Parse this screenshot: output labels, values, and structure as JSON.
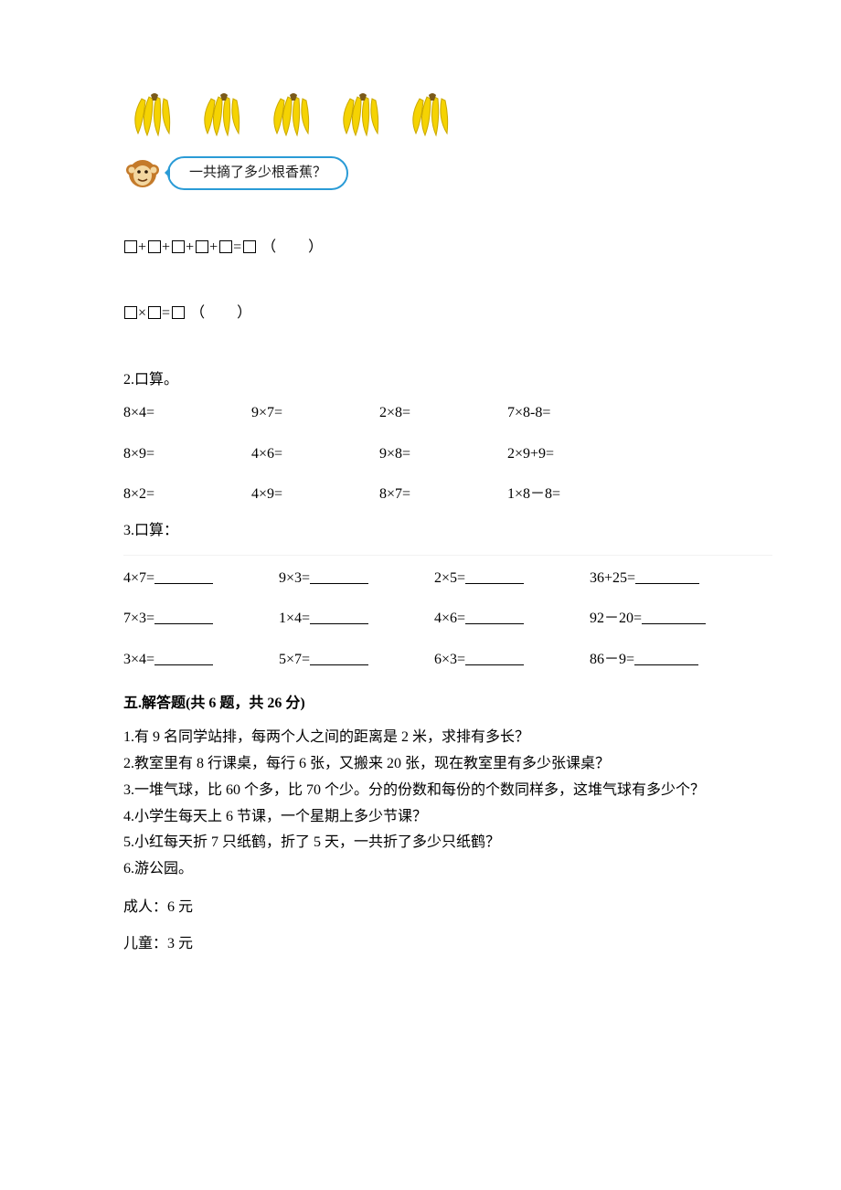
{
  "problem1": {
    "banana_count": 5,
    "speech_text": "一共摘了多少根香蕉？",
    "addition_terms": 5,
    "addition_unit": "（　　）",
    "mult_unit": "（　　）"
  },
  "problem2": {
    "heading": "2.口算。",
    "rows": [
      [
        "8×4=",
        "9×7=",
        "2×8=",
        "7×8-8="
      ],
      [
        "8×9=",
        "4×6=",
        "9×8=",
        "2×9+9="
      ],
      [
        "8×2=",
        "4×9=",
        "8×7=",
        "1×8－8="
      ]
    ]
  },
  "problem3": {
    "heading": "3.口算：",
    "rows": [
      [
        "4×7=",
        "9×3=",
        "2×5=",
        "36+25="
      ],
      [
        "7×3=",
        "1×4=",
        "4×6=",
        " 92－20="
      ],
      [
        "3×4=",
        "5×7=",
        "6×3=",
        "86－9="
      ]
    ]
  },
  "section5": {
    "title": "五.解答题(共 6 题，共 26 分)",
    "questions": [
      "1.有 9 名同学站排，每两个人之间的距离是 2 米，求排有多长？",
      "2.教室里有 8 行课桌，每行 6 张，又搬来 20 张，现在教室里有多少张课桌？",
      "3.一堆气球，比 60 个多，比 70 个少。分的份数和每份的个数同样多，这堆气球有多少个？",
      "4.小学生每天上 6 节课，一个星期上多少节课？",
      "5.小红每天折 7 只纸鹤，折了 5 天，一共折了多少只纸鹤？",
      "6.游公园。"
    ],
    "price_adult": "成人：6 元",
    "price_child": "儿童：3 元"
  },
  "colors": {
    "banana_yellow": "#f5d302",
    "banana_shadow": "#caa800",
    "monkey_brown": "#c47a2a",
    "monkey_face": "#f3d7a0",
    "bubble_border": "#2a9bd6"
  }
}
